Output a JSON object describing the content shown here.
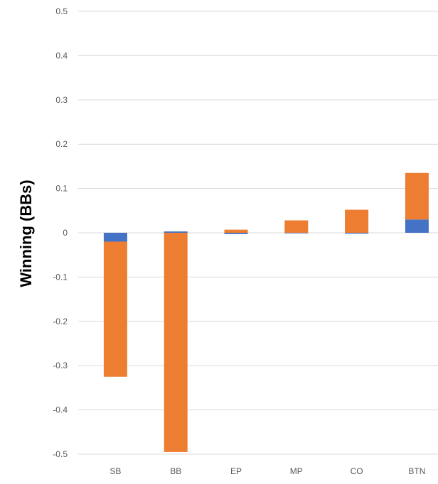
{
  "chart_data": {
    "type": "bar",
    "stacked": true,
    "title": "",
    "xlabel": "",
    "ylabel": "Winning (BBs)",
    "categories": [
      "SB",
      "BB",
      "EP",
      "MP",
      "CO",
      "BTN"
    ],
    "series": [
      {
        "color": "#4472C4",
        "values": [
          -0.02,
          0.003,
          -0.003,
          0.0,
          -0.002,
          0.03
        ]
      },
      {
        "color": "#ED7D31",
        "values": [
          -0.305,
          -0.495,
          0.007,
          0.028,
          0.052,
          0.105
        ]
      }
    ],
    "ylim": [
      -0.5,
      0.5
    ],
    "yticks": [
      0.5,
      0.4,
      0.3,
      0.2,
      0.1,
      0,
      -0.1,
      -0.2,
      -0.3,
      -0.4,
      -0.5
    ],
    "ytick_labels": [
      "0.5",
      "0.4",
      "0.3",
      "0.2",
      "0.1",
      "0",
      "-0.1",
      "-0.2",
      "-0.3",
      "-0.4",
      "-0.5"
    ],
    "grid": true,
    "gridColor": "#d9d9d9",
    "legend": "none"
  }
}
